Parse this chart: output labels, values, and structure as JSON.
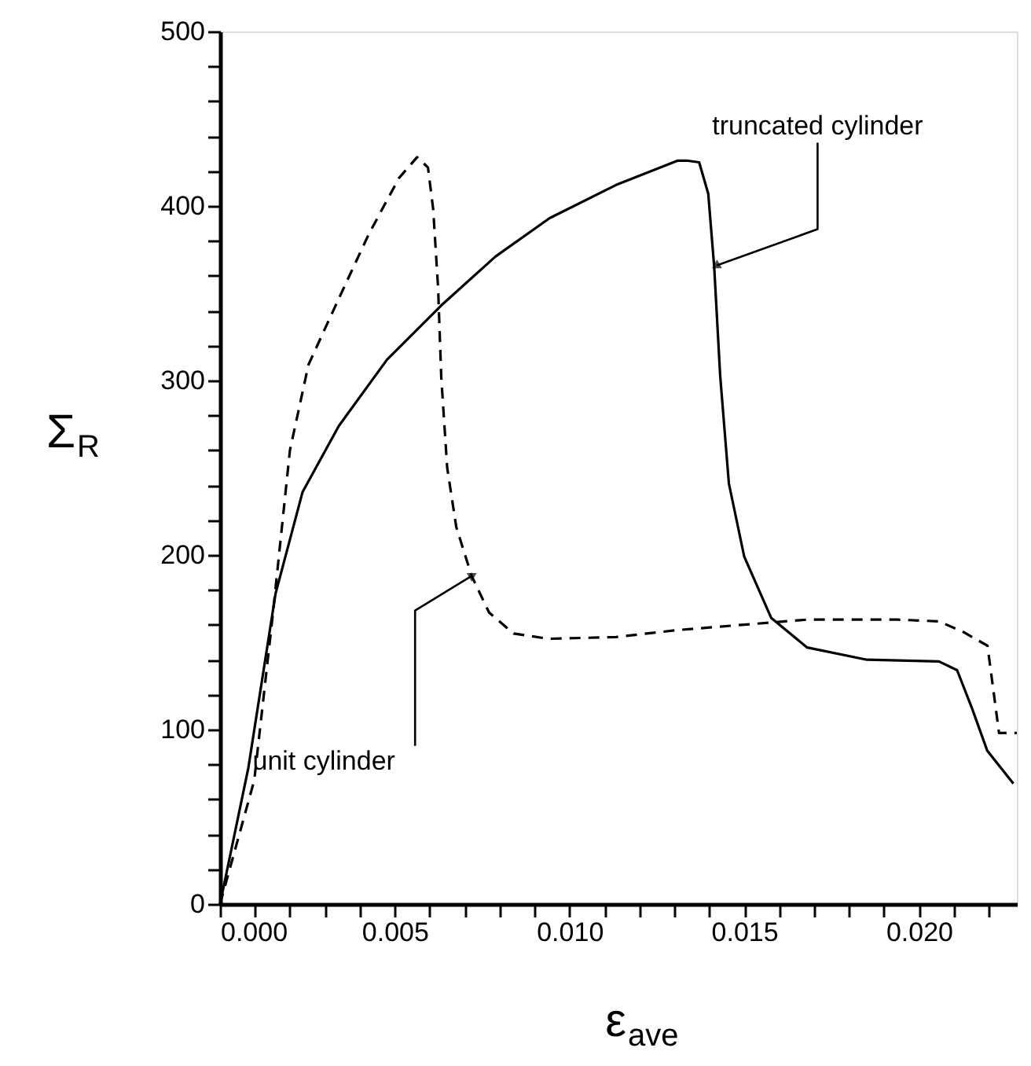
{
  "chart_data": {
    "type": "line",
    "xlabel": "ε$_{ave}$",
    "ylabel": "Σ$_{R}$",
    "xlim": [
      0,
      0.0228
    ],
    "ylim": [
      0,
      500
    ],
    "xticks": [
      {
        "value": 0,
        "label": "0.000"
      },
      {
        "value": 0.001,
        "label": null
      },
      {
        "value": 0.002,
        "label": null
      },
      {
        "value": 0.003,
        "label": null
      },
      {
        "value": 0.004,
        "label": null
      },
      {
        "value": 0.005,
        "label": "0.005"
      },
      {
        "value": 0.006,
        "label": null
      },
      {
        "value": 0.007,
        "label": null
      },
      {
        "value": 0.008,
        "label": null
      },
      {
        "value": 0.009,
        "label": null
      },
      {
        "value": 0.01,
        "label": "0.010"
      },
      {
        "value": 0.011,
        "label": null
      },
      {
        "value": 0.012,
        "label": null
      },
      {
        "value": 0.013,
        "label": null
      },
      {
        "value": 0.014,
        "label": null
      },
      {
        "value": 0.015,
        "label": "0.015"
      },
      {
        "value": 0.016,
        "label": null
      },
      {
        "value": 0.017,
        "label": null
      },
      {
        "value": 0.018,
        "label": null
      },
      {
        "value": 0.019,
        "label": null
      },
      {
        "value": 0.02,
        "label": "0.020"
      },
      {
        "value": 0.021,
        "label": null
      },
      {
        "value": 0.022,
        "label": null
      }
    ],
    "yticks": [
      0,
      {
        "value": 20,
        "label": null
      },
      {
        "value": 40,
        "label": null
      },
      {
        "value": 60,
        "label": null
      },
      {
        "value": 80,
        "label": null
      },
      100,
      {
        "value": 120,
        "label": null
      },
      {
        "value": 140,
        "label": null
      },
      {
        "value": 160,
        "label": null
      },
      {
        "value": 180,
        "label": null
      },
      200,
      {
        "value": 220,
        "label": null
      },
      {
        "value": 240,
        "label": null
      },
      {
        "value": 260,
        "label": null
      },
      {
        "value": 280,
        "label": null
      },
      300,
      {
        "value": 320,
        "label": null
      },
      {
        "value": 340,
        "label": null
      },
      {
        "value": 360,
        "label": null
      },
      {
        "value": 380,
        "label": null
      },
      400,
      {
        "value": 420,
        "label": null
      },
      {
        "value": 440,
        "label": null
      },
      {
        "value": 460,
        "label": null
      },
      {
        "value": 480,
        "label": null
      },
      500
    ],
    "grid": false,
    "marker": "none",
    "series": [
      {
        "color": "#000000",
        "line_style": "solid",
        "x": [
          0,
          0.00081,
          0.00159,
          0.00236,
          0.0034,
          0.00478,
          0.00633,
          0.00788,
          0.00943,
          0.01133,
          0.0131,
          0.01336,
          0.01371,
          0.01397,
          0.01414,
          0.01431,
          0.01456,
          0.015,
          0.01577,
          0.0168,
          0.01851,
          0.02057,
          0.02109,
          0.02152,
          0.02195,
          0.0227
        ],
        "values": [
          0,
          78,
          178,
          236,
          274,
          312,
          343,
          371,
          393,
          412,
          426,
          426,
          425,
          407,
          365,
          303,
          241,
          199,
          164,
          147,
          140,
          139,
          134,
          112,
          88,
          69
        ]
      },
      {
        "color": "#000000",
        "line_style": "dashed",
        "x": [
          0,
          0.00098,
          0.0015,
          0.002,
          0.00253,
          0.0034,
          0.00426,
          0.00512,
          0.00564,
          0.00595,
          0.0061,
          0.00624,
          0.00633,
          0.0065,
          0.00676,
          0.0072,
          0.0077,
          0.0084,
          0.0094,
          0.01133,
          0.0131,
          0.0168,
          0.01937,
          0.02057,
          0.02126,
          0.02196,
          0.02229,
          0.0228
        ],
        "values": [
          0,
          71,
          164,
          260,
          309,
          347,
          384,
          416,
          428,
          422,
          398,
          353,
          302,
          250,
          216,
          188,
          167,
          155,
          152,
          153,
          157,
          163,
          163,
          162,
          156,
          148,
          98,
          98
        ]
      }
    ],
    "annotations": [
      {
        "text": "truncated cylinder",
        "x": 0.01422,
        "y": 366
      },
      {
        "text": "unit cylinder",
        "x": 0.0072,
        "y": 188
      }
    ]
  }
}
